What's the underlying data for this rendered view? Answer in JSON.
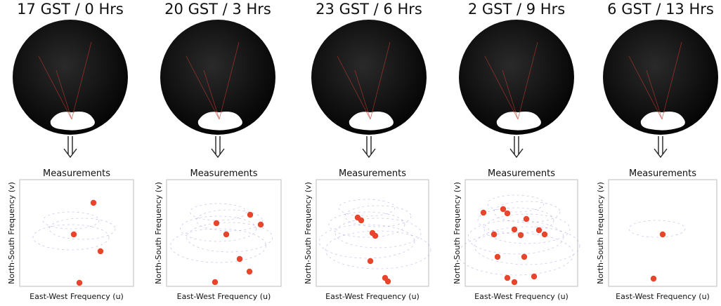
{
  "panels": [
    {
      "title": "17 GST / 0 Hrs",
      "plot_title": "Measurements",
      "x_label": "East-West Frequency (u)",
      "y_label": "North-South Frequency (v)"
    },
    {
      "title": "20 GST / 3 Hrs",
      "plot_title": "Measurements",
      "x_label": "East-West Frequency (u)",
      "y_label": "North-South Frequency (v)"
    },
    {
      "title": "23 GST / 6 Hrs",
      "plot_title": "Measurements",
      "x_label": "East-West Frequency (u)",
      "y_label": "North-South Frequency (v)"
    },
    {
      "title": "2 GST / 9 Hrs",
      "plot_title": "Measurements",
      "x_label": "East-West Frequency (u)",
      "y_label": "North-South Frequency (v)"
    },
    {
      "title": "6 GST / 13 Hrs",
      "plot_title": "Measurements",
      "x_label": "East-West Frequency (u)",
      "y_label": "North-South Frequency (v)"
    }
  ]
}
